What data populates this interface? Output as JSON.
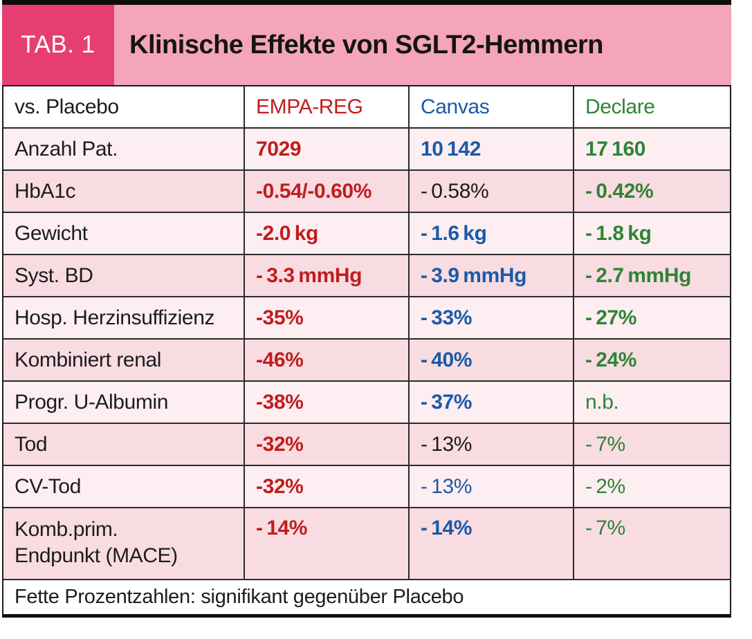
{
  "header": {
    "tab_label": "TAB. 1",
    "title": "Klinische Effekte von SGLT2-Hemmern"
  },
  "palette": {
    "red": "#c01d1d",
    "blue": "#1b5aa8",
    "green": "#2f8435",
    "black": "#1c1c1c",
    "badge_pink": "#e63e73",
    "band_pink": "#f4a5ba",
    "row_light": "#fdeef1",
    "row_dark": "#f8dce2",
    "border": "#2a2a2a"
  },
  "table": {
    "columns": [
      {
        "label": "vs. Placebo",
        "color": "black"
      },
      {
        "label": "EMPA-REG",
        "color": "red"
      },
      {
        "label": "Canvas",
        "color": "blue"
      },
      {
        "label": "Declare",
        "color": "green"
      }
    ],
    "rows": [
      {
        "label": "Anzahl Pat.",
        "cells": [
          {
            "text": "7029",
            "color": "red",
            "bold": true
          },
          {
            "text": "10 142",
            "color": "blue",
            "bold": true
          },
          {
            "text": "17 160",
            "color": "green",
            "bold": true
          }
        ]
      },
      {
        "label": "HbA1c",
        "cells": [
          {
            "text": "-0.54/-0.60%",
            "color": "red",
            "bold": true
          },
          {
            "text": "- 0.58%",
            "color": "black",
            "bold": false
          },
          {
            "text": "- 0.42%",
            "color": "green",
            "bold": true
          }
        ]
      },
      {
        "label": "Gewicht",
        "cells": [
          {
            "text": "-2.0 kg",
            "color": "red",
            "bold": true
          },
          {
            "text": "- 1.6 kg",
            "color": "blue",
            "bold": true
          },
          {
            "text": "- 1.8 kg",
            "color": "green",
            "bold": true
          }
        ]
      },
      {
        "label": "Syst. BD",
        "cells": [
          {
            "text": "- 3.3 mmHg",
            "color": "red",
            "bold": true
          },
          {
            "text": "- 3.9 mmHg",
            "color": "blue",
            "bold": true
          },
          {
            "text": "- 2.7 mmHg",
            "color": "green",
            "bold": true
          }
        ]
      },
      {
        "label": "Hosp. Herzinsuffizienz",
        "cells": [
          {
            "text": "-35%",
            "color": "red",
            "bold": true
          },
          {
            "text": "- 33%",
            "color": "blue",
            "bold": true
          },
          {
            "text": "- 27%",
            "color": "green",
            "bold": true
          }
        ]
      },
      {
        "label": "Kombiniert renal",
        "cells": [
          {
            "text": "-46%",
            "color": "red",
            "bold": true
          },
          {
            "text": "- 40%",
            "color": "blue",
            "bold": true
          },
          {
            "text": "- 24%",
            "color": "green",
            "bold": true
          }
        ]
      },
      {
        "label": "Progr. U-Albumin",
        "cells": [
          {
            "text": "-38%",
            "color": "red",
            "bold": true
          },
          {
            "text": "- 37%",
            "color": "blue",
            "bold": true
          },
          {
            "text": "n.b.",
            "color": "green",
            "bold": false
          }
        ]
      },
      {
        "label": "Tod",
        "cells": [
          {
            "text": "-32%",
            "color": "red",
            "bold": true
          },
          {
            "text": "- 13%",
            "color": "black",
            "bold": false
          },
          {
            "text": "- 7%",
            "color": "green",
            "bold": false
          }
        ]
      },
      {
        "label": "CV-Tod",
        "cells": [
          {
            "text": "-32%",
            "color": "red",
            "bold": true
          },
          {
            "text": "- 13%",
            "color": "blue",
            "bold": false
          },
          {
            "text": "- 2%",
            "color": "green",
            "bold": false
          }
        ]
      },
      {
        "label": "Komb.prim.\nEndpunkt (MACE)",
        "tall": true,
        "cells": [
          {
            "text": "- 14%",
            "color": "red",
            "bold": true
          },
          {
            "text": "- 14%",
            "color": "blue",
            "bold": true
          },
          {
            "text": "- 7%",
            "color": "green",
            "bold": false
          }
        ]
      }
    ],
    "footnote": "Fette Prozentzahlen: signifikant gegenüber Placebo"
  }
}
